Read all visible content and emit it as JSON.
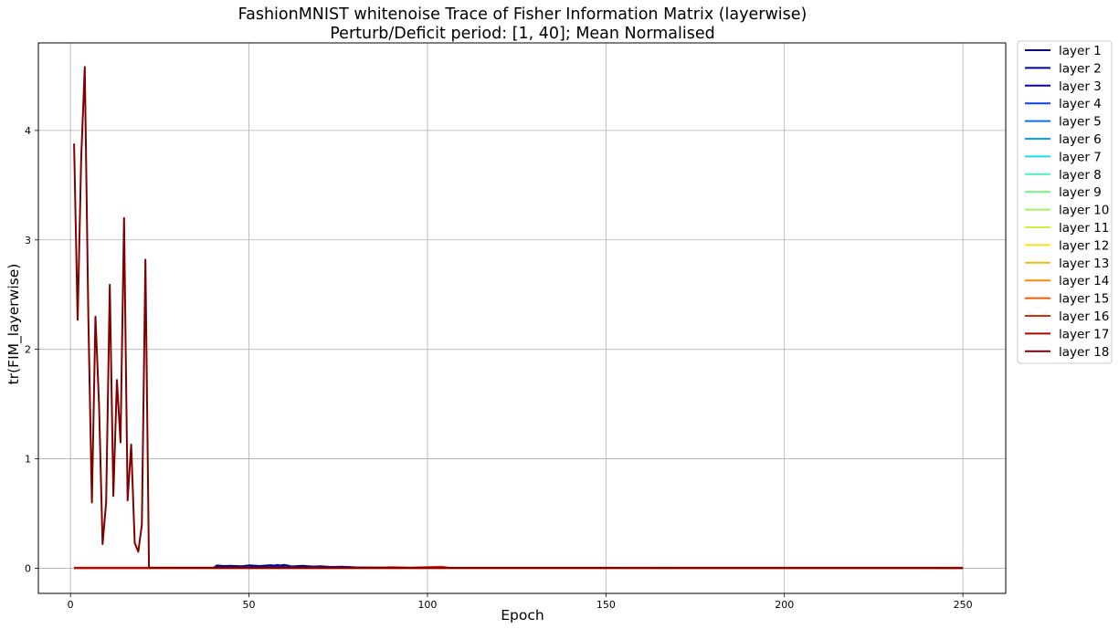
{
  "chart_data": {
    "type": "line",
    "title": "FashionMNIST whitenoise Trace of Fisher Information Matrix (layerwise)",
    "subtitle": "Perturb/Deficit period: [1, 40]; Mean Normalised",
    "xlabel": "Epoch",
    "ylabel": "tr(FIM_layerwise)",
    "xlim": [
      -9,
      262
    ],
    "ylim": [
      -0.23,
      4.8
    ],
    "xticks": [
      0,
      50,
      100,
      150,
      200,
      250
    ],
    "yticks": [
      0,
      1,
      2,
      3,
      4
    ],
    "grid": true,
    "legend_position": "outside-right",
    "series": [
      {
        "name": "layer 1",
        "color": "#00007f",
        "points": [
          [
            1,
            0.002
          ],
          [
            40,
            0.002
          ],
          [
            41,
            0.025
          ],
          [
            43,
            0.02
          ],
          [
            45,
            0.022
          ],
          [
            48,
            0.018
          ],
          [
            50,
            0.026
          ],
          [
            53,
            0.02
          ],
          [
            56,
            0.028
          ],
          [
            58,
            0.022
          ],
          [
            60,
            0.03
          ],
          [
            62,
            0.016
          ],
          [
            65,
            0.022
          ],
          [
            68,
            0.015
          ],
          [
            70,
            0.018
          ],
          [
            73,
            0.012
          ],
          [
            76,
            0.014
          ],
          [
            80,
            0.008
          ],
          [
            85,
            0.006
          ],
          [
            90,
            0.004
          ],
          [
            100,
            0.002
          ],
          [
            250,
            0.002
          ]
        ]
      },
      {
        "name": "layer 2",
        "color": "#0000a8",
        "points": [
          [
            1,
            0.002
          ],
          [
            40,
            0.002
          ],
          [
            42,
            0.012
          ],
          [
            46,
            0.01
          ],
          [
            50,
            0.014
          ],
          [
            55,
            0.01
          ],
          [
            58,
            0.03
          ],
          [
            60,
            0.012
          ],
          [
            65,
            0.008
          ],
          [
            70,
            0.01
          ],
          [
            80,
            0.005
          ],
          [
            100,
            0.002
          ],
          [
            250,
            0.002
          ]
        ]
      },
      {
        "name": "layer 3",
        "color": "#0000dd",
        "points": [
          [
            1,
            0.001
          ],
          [
            40,
            0.001
          ],
          [
            45,
            0.008
          ],
          [
            55,
            0.007
          ],
          [
            65,
            0.005
          ],
          [
            75,
            0.004
          ],
          [
            100,
            0.001
          ],
          [
            250,
            0.001
          ]
        ]
      },
      {
        "name": "layer 4",
        "color": "#0d3fe0",
        "points": [
          [
            1,
            0.001
          ],
          [
            40,
            0.001
          ],
          [
            50,
            0.005
          ],
          [
            70,
            0.004
          ],
          [
            100,
            0.001
          ],
          [
            250,
            0.001
          ]
        ]
      },
      {
        "name": "layer 5",
        "color": "#0a6ff0",
        "points": [
          [
            1,
            0.001
          ],
          [
            250,
            0.001
          ]
        ]
      },
      {
        "name": "layer 6",
        "color": "#00a6f5",
        "points": [
          [
            1,
            0.001
          ],
          [
            250,
            0.001
          ]
        ]
      },
      {
        "name": "layer 7",
        "color": "#18dbe0",
        "points": [
          [
            1,
            0.001
          ],
          [
            250,
            0.001
          ]
        ]
      },
      {
        "name": "layer 8",
        "color": "#4ef0c0",
        "points": [
          [
            1,
            0.001
          ],
          [
            250,
            0.001
          ]
        ]
      },
      {
        "name": "layer 9",
        "color": "#73f582",
        "points": [
          [
            1,
            0.001
          ],
          [
            250,
            0.001
          ]
        ]
      },
      {
        "name": "layer 10",
        "color": "#9ff55c",
        "points": [
          [
            1,
            0.001
          ],
          [
            250,
            0.001
          ]
        ]
      },
      {
        "name": "layer 11",
        "color": "#cdf53a",
        "points": [
          [
            1,
            0.001
          ],
          [
            250,
            0.001
          ]
        ]
      },
      {
        "name": "layer 12",
        "color": "#f2e21c",
        "points": [
          [
            1,
            0.001
          ],
          [
            250,
            0.001
          ]
        ]
      },
      {
        "name": "layer 13",
        "color": "#f5b714",
        "points": [
          [
            1,
            0.001
          ],
          [
            250,
            0.001
          ]
        ]
      },
      {
        "name": "layer 14",
        "color": "#f58a0c",
        "points": [
          [
            1,
            0.001
          ],
          [
            250,
            0.001
          ]
        ]
      },
      {
        "name": "layer 15",
        "color": "#ea5a0a",
        "points": [
          [
            1,
            0.001
          ],
          [
            250,
            0.001
          ]
        ]
      },
      {
        "name": "layer 16",
        "color": "#e02a06",
        "points": [
          [
            1,
            0.004
          ],
          [
            85,
            0.004
          ],
          [
            90,
            0.01
          ],
          [
            95,
            0.006
          ],
          [
            104,
            0.014
          ],
          [
            106,
            0.004
          ],
          [
            250,
            0.004
          ]
        ]
      },
      {
        "name": "layer 17",
        "color": "#b80000",
        "points": [
          [
            1,
            0.002
          ],
          [
            250,
            0.002
          ]
        ]
      },
      {
        "name": "layer 18",
        "color": "#7f0000",
        "points": [
          [
            1,
            3.88
          ],
          [
            2,
            2.27
          ],
          [
            3,
            3.75
          ],
          [
            4,
            4.58
          ],
          [
            5,
            2.3
          ],
          [
            6,
            0.6
          ],
          [
            7,
            2.3
          ],
          [
            8,
            1.5
          ],
          [
            9,
            0.22
          ],
          [
            10,
            0.6
          ],
          [
            11,
            2.59
          ],
          [
            12,
            0.66
          ],
          [
            13,
            1.72
          ],
          [
            14,
            1.15
          ],
          [
            15,
            3.2
          ],
          [
            16,
            0.62
          ],
          [
            17,
            1.13
          ],
          [
            18,
            0.23
          ],
          [
            19,
            0.15
          ],
          [
            20,
            0.4
          ],
          [
            21,
            2.82
          ],
          [
            22,
            0.005
          ],
          [
            250,
            0.002
          ]
        ]
      }
    ]
  }
}
